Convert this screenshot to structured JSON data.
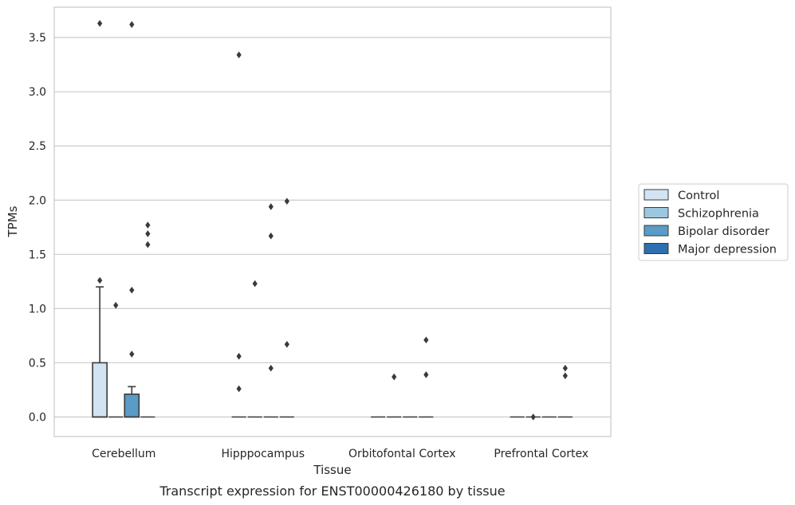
{
  "caption": "Transcript expression for ENST00000426180 by tissue",
  "chart_data": {
    "type": "boxplot",
    "xlabel": "Tissue",
    "ylabel": "TPMs",
    "ylim": [
      -0.18,
      3.78
    ],
    "yticks": [
      "0.0",
      "0.5",
      "1.0",
      "1.5",
      "2.0",
      "2.5",
      "3.0",
      "3.5"
    ],
    "grid": "horizontal",
    "legend_placement": "right",
    "categories": [
      "Cerebellum",
      "Hipppocampus",
      "Orbitofontal Cortex",
      "Prefrontal Cortex"
    ],
    "series": [
      {
        "name": "Control",
        "color": "#d2e3f3",
        "boxes": [
          {
            "q1": 0,
            "median": 0,
            "q3": 0.5,
            "whisker_low": 0,
            "whisker_high": 1.2,
            "outliers": [
              3.63,
              1.26
            ]
          },
          {
            "q1": 0,
            "median": 0,
            "q3": 0,
            "whisker_low": 0,
            "whisker_high": 0,
            "outliers": [
              3.34,
              0.56,
              0.26
            ]
          },
          {
            "q1": 0,
            "median": 0,
            "q3": 0,
            "whisker_low": 0,
            "whisker_high": 0,
            "outliers": []
          },
          {
            "q1": 0,
            "median": 0,
            "q3": 0,
            "whisker_low": 0,
            "whisker_high": 0,
            "outliers": []
          }
        ]
      },
      {
        "name": "Schizophrenia",
        "color": "#9ac8e0",
        "boxes": [
          {
            "q1": 0,
            "median": 0,
            "q3": 0,
            "whisker_low": 0,
            "whisker_high": 0,
            "outliers": [
              1.03
            ]
          },
          {
            "q1": 0,
            "median": 0,
            "q3": 0,
            "whisker_low": 0,
            "whisker_high": 0,
            "outliers": [
              1.23
            ]
          },
          {
            "q1": 0,
            "median": 0,
            "q3": 0,
            "whisker_low": 0,
            "whisker_high": 0,
            "outliers": [
              0.37
            ]
          },
          {
            "q1": 0,
            "median": 0,
            "q3": 0,
            "whisker_low": 0,
            "whisker_high": 0,
            "outliers": [
              0
            ]
          }
        ]
      },
      {
        "name": "Bipolar disorder",
        "color": "#5a9bc7",
        "boxes": [
          {
            "q1": 0,
            "median": 0,
            "q3": 0.21,
            "whisker_low": 0,
            "whisker_high": 0.28,
            "outliers": [
              3.62,
              1.17,
              0.58
            ]
          },
          {
            "q1": 0,
            "median": 0,
            "q3": 0,
            "whisker_low": 0,
            "whisker_high": 0,
            "outliers": [
              1.94,
              1.67,
              0.45
            ]
          },
          {
            "q1": 0,
            "median": 0,
            "q3": 0,
            "whisker_low": 0,
            "whisker_high": 0,
            "outliers": []
          },
          {
            "q1": 0,
            "median": 0,
            "q3": 0,
            "whisker_low": 0,
            "whisker_high": 0,
            "outliers": []
          }
        ]
      },
      {
        "name": "Major depression",
        "color": "#2d6fb0",
        "boxes": [
          {
            "q1": 0,
            "median": 0,
            "q3": 0,
            "whisker_low": 0,
            "whisker_high": 0,
            "outliers": [
              1.77,
              1.69,
              1.59
            ]
          },
          {
            "q1": 0,
            "median": 0,
            "q3": 0,
            "whisker_low": 0,
            "whisker_high": 0,
            "outliers": [
              1.99,
              0.67
            ]
          },
          {
            "q1": 0,
            "median": 0,
            "q3": 0,
            "whisker_low": 0,
            "whisker_high": 0,
            "outliers": [
              0.71,
              0.39
            ]
          },
          {
            "q1": 0,
            "median": 0,
            "q3": 0,
            "whisker_low": 0,
            "whisker_high": 0,
            "outliers": [
              0.45,
              0.38
            ]
          }
        ]
      }
    ]
  }
}
